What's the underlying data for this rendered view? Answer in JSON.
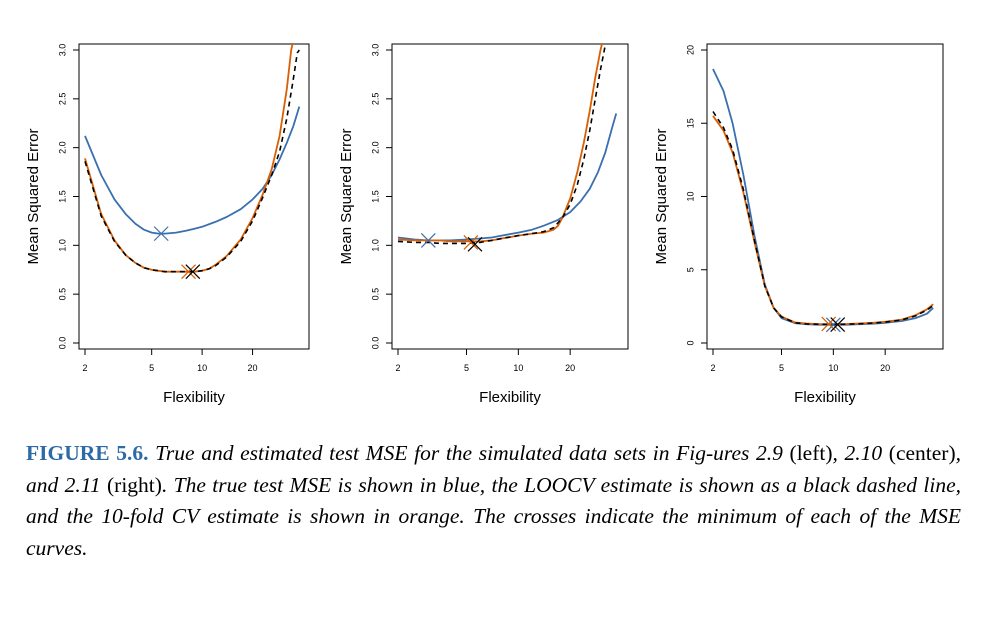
{
  "chart_data": [
    {
      "type": "line",
      "xlabel": "Flexibility",
      "ylabel": "Mean Squared Error",
      "x_scale": "log",
      "xlim": [
        2,
        40
      ],
      "ylim": [
        0,
        3.0
      ],
      "x_ticks": [
        2,
        5,
        10,
        20
      ],
      "y_ticks": [
        0.0,
        0.5,
        1.0,
        1.5,
        2.0,
        2.5,
        3.0
      ],
      "y_tick_labels": [
        "0.0",
        "0.5",
        "1.0",
        "1.5",
        "2.0",
        "2.5",
        "3.0"
      ],
      "series": [
        {
          "color": "#3a6fb0",
          "style": "solid",
          "x": [
            2,
            2.5,
            3,
            3.5,
            4,
            4.5,
            5,
            5.5,
            6,
            7,
            8,
            9,
            10,
            12,
            14,
            17,
            20,
            23,
            26,
            29,
            32,
            35,
            38
          ],
          "y": [
            2.12,
            1.72,
            1.47,
            1.32,
            1.22,
            1.16,
            1.13,
            1.12,
            1.12,
            1.13,
            1.15,
            1.17,
            1.19,
            1.24,
            1.29,
            1.37,
            1.47,
            1.58,
            1.72,
            1.88,
            2.05,
            2.22,
            2.42
          ]
        },
        {
          "color": "#d95f02",
          "style": "solid",
          "x": [
            2,
            2.5,
            3,
            3.5,
            4,
            4.5,
            5,
            6,
            7,
            8,
            9,
            10,
            11,
            12,
            14,
            17,
            20,
            23,
            26,
            29,
            32,
            34,
            35
          ],
          "y": [
            1.89,
            1.32,
            1.05,
            0.9,
            0.82,
            0.77,
            0.75,
            0.73,
            0.73,
            0.73,
            0.73,
            0.74,
            0.76,
            0.8,
            0.89,
            1.06,
            1.28,
            1.52,
            1.78,
            2.12,
            2.6,
            3.0,
            3.1
          ]
        },
        {
          "color": "#000000",
          "style": "dashed",
          "x": [
            2,
            2.5,
            3,
            3.5,
            4,
            4.5,
            5,
            6,
            7,
            8,
            9,
            10,
            11,
            12,
            14,
            17,
            20,
            23,
            26,
            29,
            32,
            35,
            37,
            38
          ],
          "y": [
            1.86,
            1.3,
            1.04,
            0.9,
            0.82,
            0.77,
            0.75,
            0.73,
            0.73,
            0.73,
            0.73,
            0.74,
            0.76,
            0.79,
            0.88,
            1.04,
            1.25,
            1.49,
            1.72,
            1.96,
            2.3,
            2.7,
            2.97,
            3.0
          ]
        }
      ],
      "minima": [
        {
          "color": "#3a6fb0",
          "x": 5.7,
          "y": 1.12
        },
        {
          "color": "#d95f02",
          "x": 8.3,
          "y": 0.73
        },
        {
          "color": "#000000",
          "x": 8.8,
          "y": 0.73
        }
      ]
    },
    {
      "type": "line",
      "xlabel": "Flexibility",
      "ylabel": "Mean Squared Error",
      "x_scale": "log",
      "xlim": [
        2,
        40
      ],
      "ylim": [
        0,
        3.0
      ],
      "x_ticks": [
        2,
        5,
        10,
        20
      ],
      "y_ticks": [
        0.0,
        0.5,
        1.0,
        1.5,
        2.0,
        2.5,
        3.0
      ],
      "y_tick_labels": [
        "0.0",
        "0.5",
        "1.0",
        "1.5",
        "2.0",
        "2.5",
        "3.0"
      ],
      "series": [
        {
          "color": "#3a6fb0",
          "style": "solid",
          "x": [
            2,
            2.5,
            3,
            3.5,
            4,
            5,
            6,
            7,
            8,
            10,
            12,
            14,
            17,
            20,
            23,
            26,
            29,
            32,
            35,
            37
          ],
          "y": [
            1.08,
            1.06,
            1.05,
            1.05,
            1.05,
            1.06,
            1.07,
            1.08,
            1.1,
            1.13,
            1.16,
            1.2,
            1.26,
            1.34,
            1.45,
            1.58,
            1.75,
            1.95,
            2.2,
            2.35
          ]
        },
        {
          "color": "#d95f02",
          "style": "solid",
          "x": [
            2,
            2.5,
            3,
            3.5,
            4,
            5,
            6,
            7,
            8,
            10,
            12,
            14,
            16,
            17,
            18,
            20,
            22,
            24,
            26,
            28,
            30,
            31,
            32
          ],
          "y": [
            1.06,
            1.05,
            1.05,
            1.05,
            1.04,
            1.04,
            1.04,
            1.05,
            1.07,
            1.1,
            1.12,
            1.13,
            1.16,
            1.2,
            1.28,
            1.48,
            1.75,
            2.05,
            2.38,
            2.72,
            3.0,
            3.1,
            3.15
          ]
        },
        {
          "color": "#000000",
          "style": "dashed",
          "x": [
            2,
            2.5,
            3,
            3.5,
            4,
            5,
            6,
            7,
            8,
            10,
            12,
            14,
            16,
            18,
            20,
            22,
            24,
            26,
            28,
            30,
            32,
            33
          ],
          "y": [
            1.04,
            1.03,
            1.03,
            1.02,
            1.02,
            1.02,
            1.03,
            1.05,
            1.07,
            1.1,
            1.12,
            1.14,
            1.18,
            1.28,
            1.42,
            1.62,
            1.88,
            2.18,
            2.5,
            2.8,
            3.05,
            3.15
          ]
        }
      ],
      "minima": [
        {
          "color": "#3a6fb0",
          "x": 3.0,
          "y": 1.05
        },
        {
          "color": "#d95f02",
          "x": 5.3,
          "y": 1.03
        },
        {
          "color": "#000000",
          "x": 5.6,
          "y": 1.01
        }
      ]
    },
    {
      "type": "line",
      "xlabel": "Flexibility",
      "ylabel": "Mean Squared Error",
      "x_scale": "log",
      "xlim": [
        2,
        40
      ],
      "ylim": [
        0,
        20
      ],
      "x_ticks": [
        2,
        5,
        10,
        20
      ],
      "y_ticks": [
        0,
        5,
        10,
        15,
        20
      ],
      "y_tick_labels": [
        "0",
        "5",
        "10",
        "15",
        "20"
      ],
      "series": [
        {
          "color": "#3a6fb0",
          "style": "solid",
          "x": [
            2,
            2.3,
            2.6,
            3,
            3.5,
            4,
            4.5,
            5,
            6,
            7,
            8,
            10,
            12,
            14,
            17,
            20,
            25,
            30,
            35,
            38
          ],
          "y": [
            18.7,
            17.2,
            15.0,
            11.5,
            7.2,
            4.0,
            2.4,
            1.7,
            1.35,
            1.28,
            1.25,
            1.24,
            1.25,
            1.28,
            1.32,
            1.38,
            1.5,
            1.7,
            2.0,
            2.4
          ]
        },
        {
          "color": "#d95f02",
          "style": "solid",
          "x": [
            2,
            2.3,
            2.6,
            3,
            3.5,
            4,
            4.5,
            5,
            6,
            7,
            8,
            10,
            12,
            14,
            17,
            20,
            25,
            30,
            35,
            38
          ],
          "y": [
            15.5,
            14.5,
            13.0,
            10.3,
            6.8,
            3.9,
            2.4,
            1.8,
            1.4,
            1.33,
            1.3,
            1.28,
            1.3,
            1.33,
            1.38,
            1.45,
            1.6,
            1.9,
            2.3,
            2.65
          ]
        },
        {
          "color": "#000000",
          "style": "dashed",
          "x": [
            2,
            2.3,
            2.6,
            3,
            3.5,
            4,
            4.5,
            5,
            6,
            7,
            8,
            10,
            12,
            14,
            17,
            20,
            25,
            30,
            35,
            38
          ],
          "y": [
            15.8,
            14.7,
            13.2,
            10.5,
            6.9,
            3.9,
            2.4,
            1.78,
            1.38,
            1.3,
            1.28,
            1.26,
            1.28,
            1.31,
            1.36,
            1.43,
            1.58,
            1.85,
            2.25,
            2.55
          ]
        }
      ],
      "minima": [
        {
          "color": "#3a6fb0",
          "x": 10.0,
          "y": 1.24
        },
        {
          "color": "#d95f02",
          "x": 9.4,
          "y": 1.3
        },
        {
          "color": "#000000",
          "x": 10.6,
          "y": 1.26
        }
      ]
    }
  ],
  "caption": {
    "label": "FIGURE 5.6.",
    "part1": " True and estimated test MSE for the simulated data sets in Fig-ures 2.9 ",
    "left": "(left)",
    "part2": ", 2.10 ",
    "center": "(center)",
    "part3": ", and 2.11 ",
    "right": "(right)",
    "part4": ". The true test MSE is shown in blue, the LOOCV estimate is shown as a black dashed line, and the 10-fold CV estimate is shown in orange. The crosses indicate the minimum of each of the MSE curves."
  }
}
